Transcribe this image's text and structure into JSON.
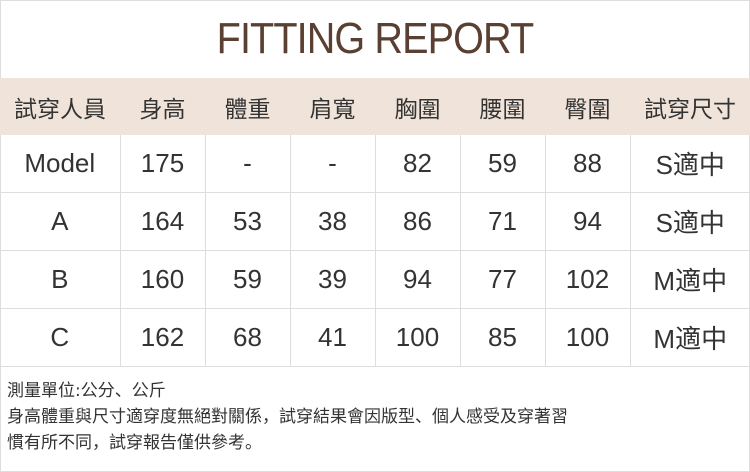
{
  "title": "FITTING REPORT",
  "table": {
    "headers": [
      "試穿人員",
      "身高",
      "體重",
      "肩寬",
      "胸圍",
      "腰圍",
      "臀圍",
      "試穿尺寸"
    ],
    "rows": [
      [
        "Model",
        "175",
        "-",
        "-",
        "82",
        "59",
        "88",
        "S適中"
      ],
      [
        "A",
        "164",
        "53",
        "38",
        "86",
        "71",
        "94",
        "S適中"
      ],
      [
        "B",
        "160",
        "59",
        "39",
        "94",
        "77",
        "102",
        "M適中"
      ],
      [
        "C",
        "162",
        "68",
        "41",
        "100",
        "85",
        "100",
        "M適中"
      ]
    ]
  },
  "notes": {
    "unit": "測量單位:公分、公斤",
    "line1": "身高體重與尺寸適穿度無絕對關係，試穿結果會因版型、個人感受及穿著習",
    "line2": "慣有所不同，試穿報告僅供參考。"
  },
  "colors": {
    "title": "#5a4032",
    "header_bg": "#f0e4da",
    "grid": "#dddddd"
  }
}
